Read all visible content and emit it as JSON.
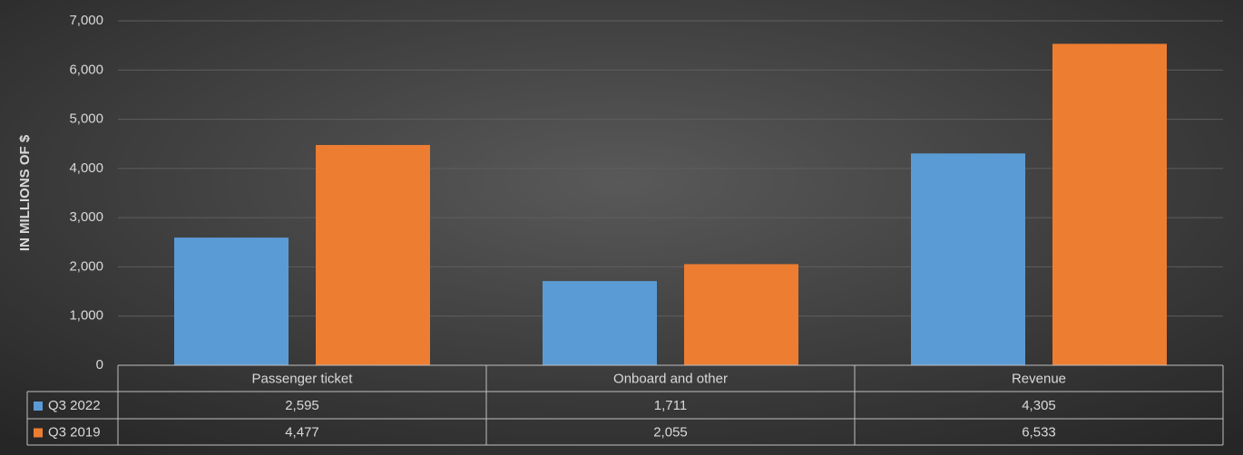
{
  "chart_data": {
    "type": "bar",
    "y_label": "IN MILLIONS OF $",
    "categories": [
      "Passenger ticket",
      "Onboard and other",
      "Revenue"
    ],
    "series": [
      {
        "name": "Q3 2022",
        "color": "#5b9bd5",
        "values": [
          2595,
          1711,
          4305
        ],
        "value_labels": [
          "2,595",
          "1,711",
          "4,305"
        ]
      },
      {
        "name": "Q3 2019",
        "color": "#ed7d31",
        "values": [
          4477,
          2055,
          6533
        ],
        "value_labels": [
          "4,477",
          "2,055",
          "6,533"
        ]
      }
    ],
    "ylim": [
      0,
      7000
    ],
    "yticks": [
      0,
      {
        "value": 1000,
        "label": "1,000"
      },
      {
        "value": 2000,
        "label": "2,000"
      },
      {
        "value": 3000,
        "label": "3,000"
      },
      {
        "value": 4000,
        "label": "4,000"
      },
      {
        "value": 5000,
        "label": "5,000"
      },
      {
        "value": 6000,
        "label": "6,000"
      },
      {
        "value": 7000,
        "label": "7,000"
      }
    ],
    "grid": true
  }
}
